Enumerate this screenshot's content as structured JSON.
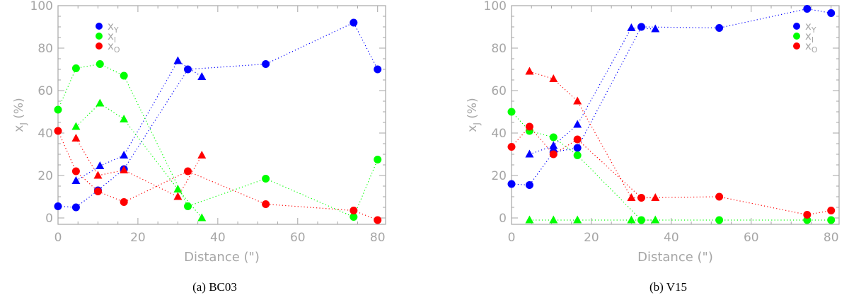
{
  "colors": {
    "axis": "#a6a6a6",
    "blue": "#0000ff",
    "green": "#00ff00",
    "red": "#ff0000",
    "caption": "#000000"
  },
  "chart_data": [
    {
      "type": "scatter",
      "caption": "(a) BC03",
      "xlabel": "Distance (\")",
      "ylabel": "x_J (%)",
      "xlim": [
        0,
        82
      ],
      "ylim": [
        -3,
        100
      ],
      "xticks": [
        0,
        20,
        40,
        60,
        80
      ],
      "yticks": [
        0,
        20,
        40,
        60,
        80,
        100
      ],
      "legend": {
        "position": "top-left",
        "entries": [
          {
            "key": "xY",
            "base": "x",
            "sub": "Y"
          },
          {
            "key": "xI",
            "base": "x",
            "sub": "I"
          },
          {
            "key": "xO",
            "base": "x",
            "sub": "O"
          }
        ]
      },
      "series": [
        {
          "key": "xY",
          "color": "blue",
          "line": "dotted",
          "circles": [
            [
              0,
              5.5
            ],
            [
              4.5,
              5.0
            ],
            [
              10,
              13
            ],
            [
              16.5,
              23
            ],
            [
              32.5,
              70
            ],
            [
              52,
              72.5
            ],
            [
              74,
              92
            ],
            [
              80,
              70
            ]
          ],
          "triangles": [
            [
              4.5,
              17.5
            ],
            [
              10.5,
              24.5
            ],
            [
              16.5,
              29.5
            ],
            [
              30,
              74
            ],
            [
              36,
              66.5
            ]
          ]
        },
        {
          "key": "xI",
          "color": "green",
          "line": "dotted",
          "circles": [
            [
              0,
              51
            ],
            [
              4.5,
              70.5
            ],
            [
              10.5,
              72.5
            ],
            [
              16.5,
              67
            ],
            [
              32.5,
              5.5
            ],
            [
              52,
              18.5
            ],
            [
              74,
              0.5
            ],
            [
              80,
              27.5
            ]
          ],
          "triangles": [
            [
              4.5,
              43
            ],
            [
              10.5,
              54
            ],
            [
              16.5,
              46.5
            ],
            [
              30,
              13.5
            ],
            [
              36,
              0
            ]
          ]
        },
        {
          "key": "xO",
          "color": "red",
          "line": "dotted",
          "circles": [
            [
              0,
              41
            ],
            [
              4.5,
              22
            ],
            [
              10,
              12.5
            ],
            [
              16.5,
              7.5
            ],
            [
              32.5,
              22
            ],
            [
              52,
              6.5
            ],
            [
              74,
              3.5
            ],
            [
              80,
              -1
            ]
          ],
          "triangles": [
            [
              4.5,
              37.5
            ],
            [
              10,
              20
            ],
            [
              16.5,
              22.5
            ],
            [
              30,
              10
            ],
            [
              36,
              29.5
            ]
          ]
        }
      ]
    },
    {
      "type": "scatter",
      "caption": "(b) V15",
      "xlabel": "Distance (\")",
      "ylabel": "x_J (%)",
      "xlim": [
        0,
        82
      ],
      "ylim": [
        -3,
        100
      ],
      "xticks": [
        0,
        20,
        40,
        60,
        80
      ],
      "yticks": [
        0,
        20,
        40,
        60,
        80,
        100
      ],
      "legend": {
        "position": "top-right",
        "entries": [
          {
            "key": "xY",
            "base": "x",
            "sub": "Y"
          },
          {
            "key": "xI",
            "base": "x",
            "sub": "I"
          },
          {
            "key": "xO",
            "base": "x",
            "sub": "O"
          }
        ]
      },
      "series": [
        {
          "key": "xY",
          "color": "blue",
          "line": "dotted",
          "circles": [
            [
              0,
              16
            ],
            [
              4.5,
              15.5
            ],
            [
              10.5,
              31
            ],
            [
              16.5,
              33
            ],
            [
              32.5,
              90
            ],
            [
              52,
              89.5
            ],
            [
              74,
              98.5
            ],
            [
              80,
              96.5
            ]
          ],
          "triangles": [
            [
              4.5,
              30
            ],
            [
              10.5,
              34
            ],
            [
              16.5,
              44
            ],
            [
              30,
              89.5
            ],
            [
              36,
              89
            ]
          ]
        },
        {
          "key": "xI",
          "color": "green",
          "line": "dotted",
          "circles": [
            [
              0,
              50
            ],
            [
              4.5,
              41
            ],
            [
              10.5,
              38
            ],
            [
              16.5,
              29.5
            ],
            [
              32.5,
              -1
            ],
            [
              52,
              -1
            ],
            [
              74,
              -1
            ],
            [
              80,
              -1
            ]
          ],
          "triangles": [
            [
              4.5,
              -1
            ],
            [
              10.5,
              -1
            ],
            [
              16.5,
              -1
            ],
            [
              30,
              -1
            ],
            [
              36,
              -1
            ]
          ]
        },
        {
          "key": "xO",
          "color": "red",
          "line": "dotted",
          "circles": [
            [
              0,
              33.5
            ],
            [
              4.5,
              43
            ],
            [
              10.5,
              30
            ],
            [
              16.5,
              37
            ],
            [
              32.5,
              9.5
            ],
            [
              52,
              10
            ],
            [
              74,
              1.5
            ],
            [
              80,
              3.5
            ]
          ],
          "triangles": [
            [
              4.5,
              69
            ],
            [
              10.5,
              65.5
            ],
            [
              16.5,
              55
            ],
            [
              30,
              9.5
            ],
            [
              36,
              9.5
            ]
          ]
        }
      ]
    }
  ]
}
